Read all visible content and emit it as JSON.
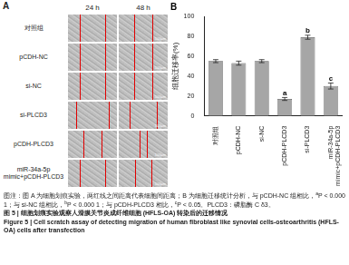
{
  "panel_a": {
    "label": "A",
    "columns": [
      "24 h",
      "48 h"
    ],
    "rows": [
      "对照组",
      "pCDH-NC",
      "si-NC",
      "si-PLCD3",
      "pCDH-PLCD3",
      "miR-34a-5p mimic+pCDH-PLCD3"
    ],
    "scale_bar": "100μm"
  },
  "chart_data": {
    "type": "bar",
    "title": "B",
    "y_label": "细胞迁移率(%)",
    "categories": [
      "对照组",
      "pCDH-NC",
      "si-NC",
      "pCDH-PLCD3",
      "si-PLCD3",
      "miR-34a-5p mimic+pCDH-PLCD3"
    ],
    "values": [
      55,
      53,
      55,
      17,
      79,
      30
    ],
    "errors": [
      1.5,
      2,
      1.5,
      1.5,
      2,
      3
    ],
    "annotations": [
      null,
      null,
      null,
      "a",
      "b",
      "c"
    ],
    "color": "#a6a6a6",
    "ylim": [
      0,
      100
    ],
    "yticks": [
      0,
      20,
      40,
      60,
      80,
      100
    ],
    "grid": false
  },
  "caption": {
    "note": [
      {
        "text": "图注：图 A 为细胞划痕实验，两红线之间距离代表细胞间距离；B 为细胞迁移统计分析，与 pCDH-NC 组相比，"
      },
      {
        "sup": "a"
      },
      {
        "text": "P < 0.000 1；与 si-NC 组相比，"
      },
      {
        "sup": "b"
      },
      {
        "text": "P < 0.000 1；与 pCDH-PLCD3 相比，"
      },
      {
        "sup": "c"
      },
      {
        "text": "P < 0.05。PLCD3：磷脂酶 C δ3。"
      }
    ],
    "figure_cn": "图 5 | 细胞划痕实验观察人滑膜关节炎成纤维细胞 (HFLS-OA) 转染后的迁移情况",
    "figure_en": "Figure 5 | Cell scratch assay of detecting migration of human fibroblast like synovial cells-osteoarthritis (HFLS-OA) cells after transfection"
  }
}
